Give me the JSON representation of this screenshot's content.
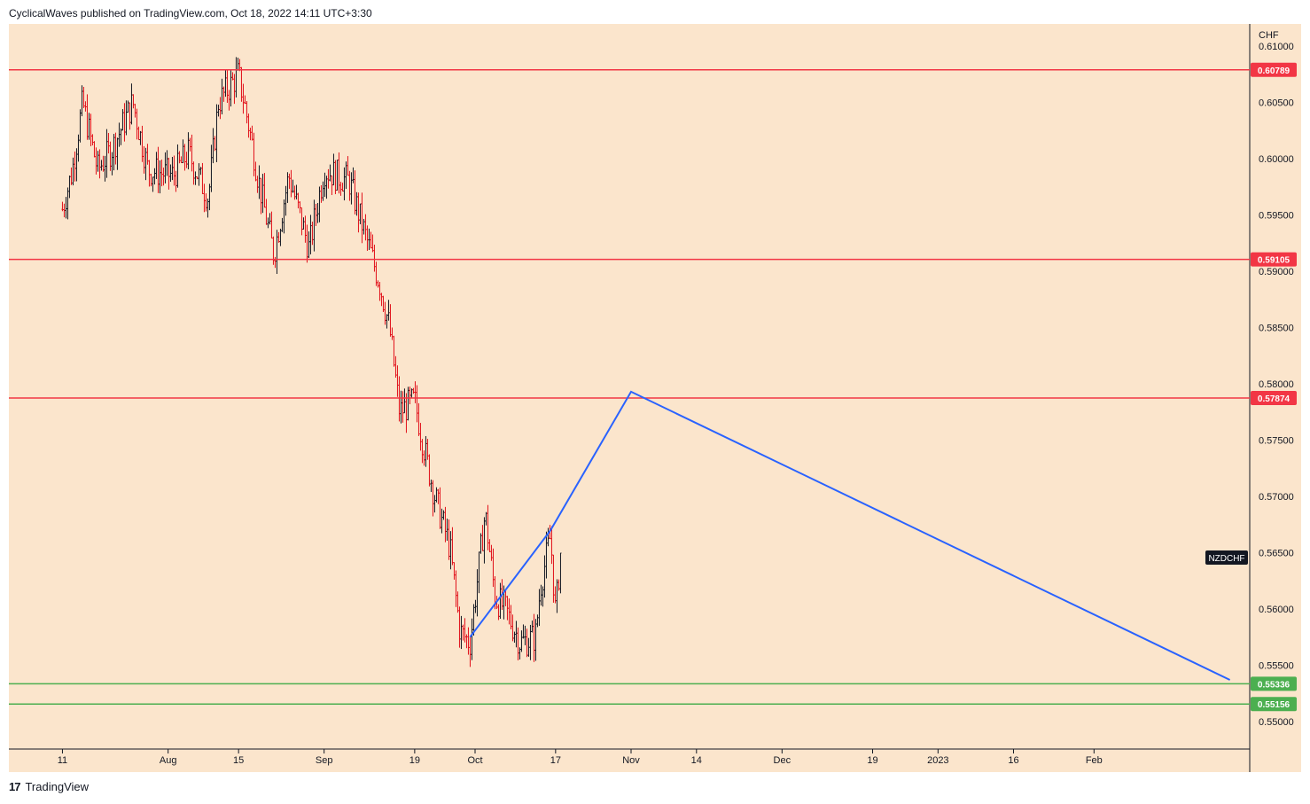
{
  "header": {
    "published_text": "CyclicalWaves published on TradingView.com, Oct 18, 2022 14:11 UTC+3:30"
  },
  "footer": {
    "brand_logo": "17",
    "brand_name": "TradingView"
  },
  "colors": {
    "background": "#fbe5cc",
    "candle_up": "#131722",
    "candle_down": "#e0101a",
    "resistance_line": "#f23645",
    "support_line": "#4caf50",
    "projection_line": "#2962ff",
    "symbol_badge": "#131722"
  },
  "chart_data": {
    "type": "candlestick",
    "symbol": "NZDCHF",
    "currency_label": "CHF",
    "y_ticks": [
      "0.61000",
      "0.60500",
      "0.60000",
      "0.59500",
      "0.59000",
      "0.58500",
      "0.58000",
      "0.57500",
      "0.57000",
      "0.56500",
      "0.56000",
      "0.55500",
      "0.55000"
    ],
    "x_ticks": [
      "11",
      "Aug",
      "15",
      "Sep",
      "19",
      "Oct",
      "17",
      "Nov",
      "14",
      "Dec",
      "19",
      "2023",
      "16",
      "Feb"
    ],
    "horizontal_levels": [
      {
        "value": 0.60789,
        "label": "0.60789",
        "kind": "resistance"
      },
      {
        "value": 0.59105,
        "label": "0.59105",
        "kind": "resistance"
      },
      {
        "value": 0.57874,
        "label": "0.57874",
        "kind": "resistance"
      },
      {
        "value": 0.55336,
        "label": "0.55336",
        "kind": "support"
      },
      {
        "value": 0.55156,
        "label": "0.55156",
        "kind": "support"
      }
    ],
    "projection_path": [
      {
        "date": "2022-09-30",
        "price": 0.5575
      },
      {
        "date": "2022-10-16",
        "price": 0.567
      },
      {
        "date": "2022-11-01",
        "price": 0.5793
      },
      {
        "date": "2023-02-28",
        "price": 0.5537
      }
    ],
    "price_path": [
      {
        "date": "2022-07-11",
        "price": 0.5955
      },
      {
        "date": "2022-07-13",
        "price": 0.599
      },
      {
        "date": "2022-07-15",
        "price": 0.605
      },
      {
        "date": "2022-07-18",
        "price": 0.599
      },
      {
        "date": "2022-07-21",
        "price": 0.601
      },
      {
        "date": "2022-07-25",
        "price": 0.605
      },
      {
        "date": "2022-07-28",
        "price": 0.599
      },
      {
        "date": "2022-08-02",
        "price": 0.5985
      },
      {
        "date": "2022-08-05",
        "price": 0.6005
      },
      {
        "date": "2022-08-09",
        "price": 0.5965
      },
      {
        "date": "2022-08-11",
        "price": 0.605
      },
      {
        "date": "2022-08-15",
        "price": 0.6075
      },
      {
        "date": "2022-08-17",
        "price": 0.603
      },
      {
        "date": "2022-08-19",
        "price": 0.598
      },
      {
        "date": "2022-08-22",
        "price": 0.5915
      },
      {
        "date": "2022-08-25",
        "price": 0.5985
      },
      {
        "date": "2022-08-29",
        "price": 0.592
      },
      {
        "date": "2022-09-01",
        "price": 0.599
      },
      {
        "date": "2022-09-06",
        "price": 0.598
      },
      {
        "date": "2022-09-09",
        "price": 0.5935
      },
      {
        "date": "2022-09-12",
        "price": 0.589
      },
      {
        "date": "2022-09-14",
        "price": 0.585
      },
      {
        "date": "2022-09-16",
        "price": 0.5775
      },
      {
        "date": "2022-09-19",
        "price": 0.5785
      },
      {
        "date": "2022-09-21",
        "price": 0.574
      },
      {
        "date": "2022-09-23",
        "price": 0.57
      },
      {
        "date": "2022-09-26",
        "price": 0.5655
      },
      {
        "date": "2022-09-28",
        "price": 0.558
      },
      {
        "date": "2022-09-30",
        "price": 0.557
      },
      {
        "date": "2022-10-03",
        "price": 0.5685
      },
      {
        "date": "2022-10-05",
        "price": 0.561
      },
      {
        "date": "2022-10-07",
        "price": 0.56
      },
      {
        "date": "2022-10-10",
        "price": 0.557
      },
      {
        "date": "2022-10-13",
        "price": 0.5575
      },
      {
        "date": "2022-10-14",
        "price": 0.562
      },
      {
        "date": "2022-10-16",
        "price": 0.5665
      },
      {
        "date": "2022-10-17",
        "price": 0.5595
      },
      {
        "date": "2022-10-18",
        "price": 0.565
      }
    ]
  }
}
